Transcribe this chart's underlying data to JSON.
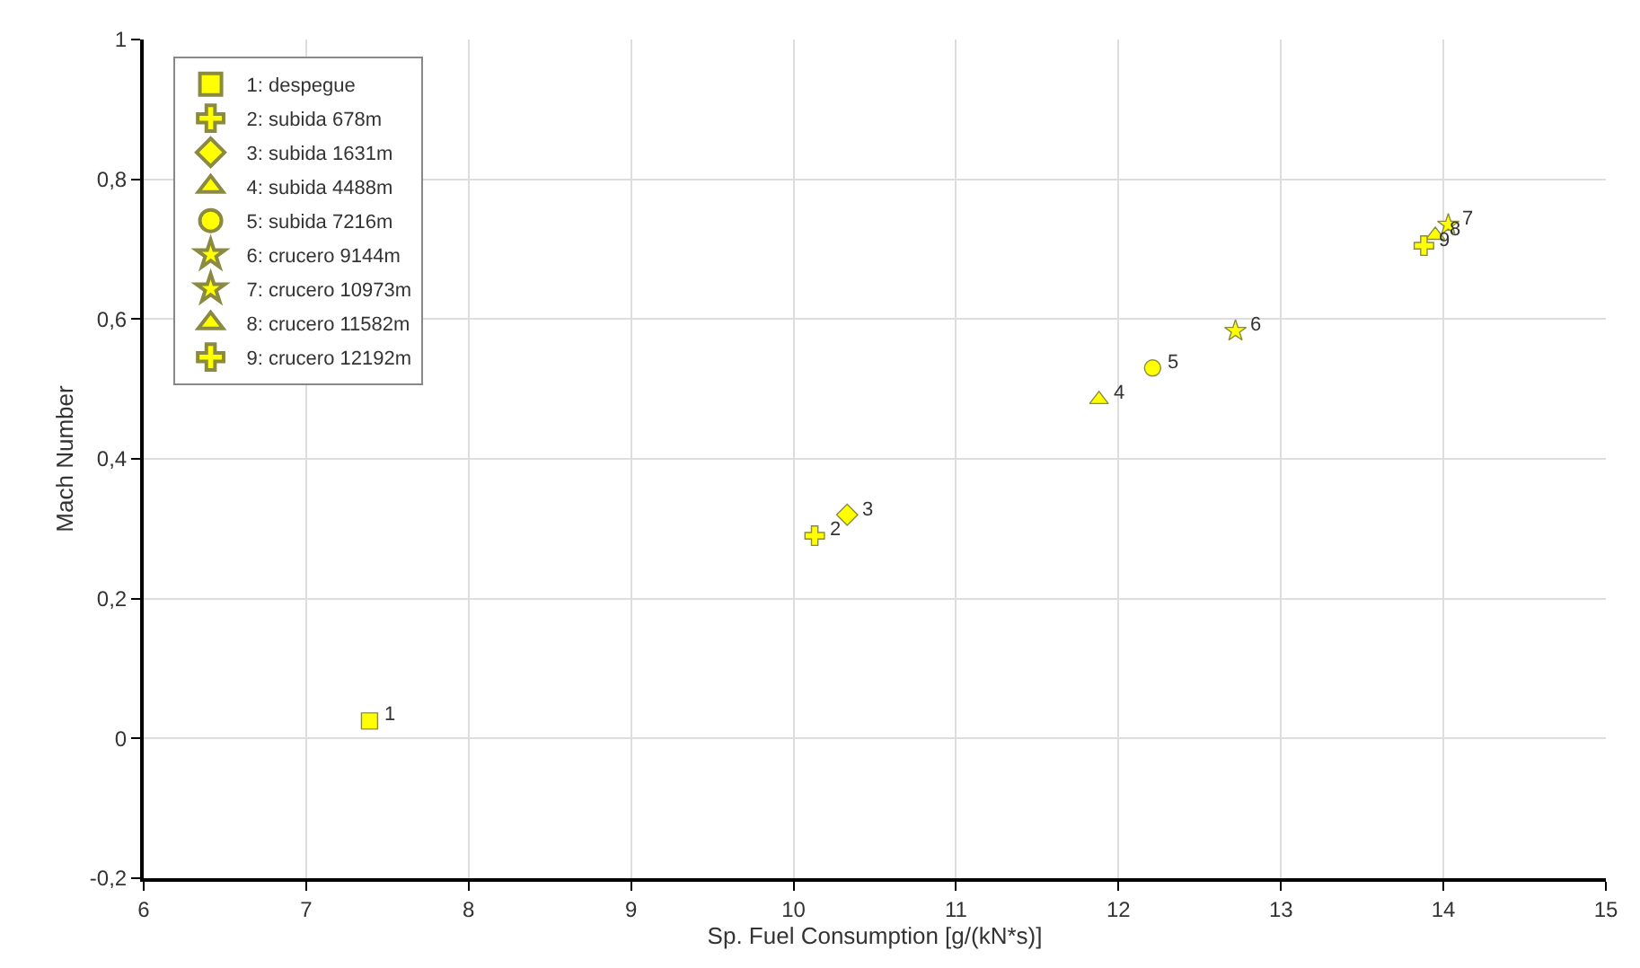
{
  "chart_data": {
    "type": "scatter",
    "xlabel": "Sp. Fuel Consumption [g/(kN*s)]",
    "ylabel": "Mach Number",
    "xlim": [
      6,
      15
    ],
    "xticks": [
      6,
      7,
      8,
      9,
      10,
      11,
      12,
      13,
      14,
      15
    ],
    "ylim": [
      -0.2,
      1
    ],
    "yticks": [
      {
        "value": -0.2,
        "label": "-0,2"
      },
      0,
      {
        "value": 0.2,
        "label": "0,2"
      },
      {
        "value": 0.4,
        "label": "0,4"
      },
      {
        "value": 0.6,
        "label": "0,6"
      },
      {
        "value": 0.8,
        "label": "0,8"
      },
      1
    ],
    "grid": true,
    "legend": "top left",
    "series": [
      {
        "name": "1: despegue",
        "color": "#ffff00",
        "marker": "square",
        "x": [
          7.39
        ],
        "values": [
          0.025
        ]
      },
      {
        "name": "2: subida 678m",
        "color": "#ffff00",
        "marker": "cross",
        "x": [
          10.13
        ],
        "values": [
          0.29
        ]
      },
      {
        "name": "3: subida 1631m",
        "color": "#ffff00",
        "marker": "diamond",
        "x": [
          10.33
        ],
        "values": [
          0.32
        ]
      },
      {
        "name": "4: subida 4488m",
        "color": "#ffff00",
        "marker": "triangle",
        "x": [
          11.88
        ],
        "values": [
          0.485
        ]
      },
      {
        "name": "5: subida 7216m",
        "color": "#ffff00",
        "marker": "circle",
        "x": [
          12.21
        ],
        "values": [
          0.53
        ]
      },
      {
        "name": "6: crucero 9144m",
        "color": "#ffff00",
        "marker": "star",
        "x": [
          12.72
        ],
        "values": [
          0.583
        ]
      },
      {
        "name": "7: crucero 10973m",
        "color": "#ffff00",
        "marker": "star",
        "x": [
          14.03
        ],
        "values": [
          0.735
        ]
      },
      {
        "name": "8: crucero 11582m",
        "color": "#ffff00",
        "marker": "triangle",
        "x": [
          13.95
        ],
        "values": [
          0.72
        ]
      },
      {
        "name": "9: crucero 12192m",
        "color": "#ffff00",
        "marker": "cross",
        "x": [
          13.88
        ],
        "values": [
          0.705
        ]
      }
    ],
    "annotations": [
      {
        "text": "1",
        "x": 7.39,
        "y": 0.025
      },
      {
        "text": "2",
        "x": 10.13,
        "y": 0.29
      },
      {
        "text": "3",
        "x": 10.33,
        "y": 0.32
      },
      {
        "text": "4",
        "x": 11.88,
        "y": 0.485
      },
      {
        "text": "5",
        "x": 12.21,
        "y": 0.53
      },
      {
        "text": "6",
        "x": 12.72,
        "y": 0.583
      },
      {
        "text": "7",
        "x": 14.03,
        "y": 0.735
      },
      {
        "text": "8",
        "x": 13.95,
        "y": 0.72
      },
      {
        "text": "9",
        "x": 13.88,
        "y": 0.705
      }
    ]
  }
}
